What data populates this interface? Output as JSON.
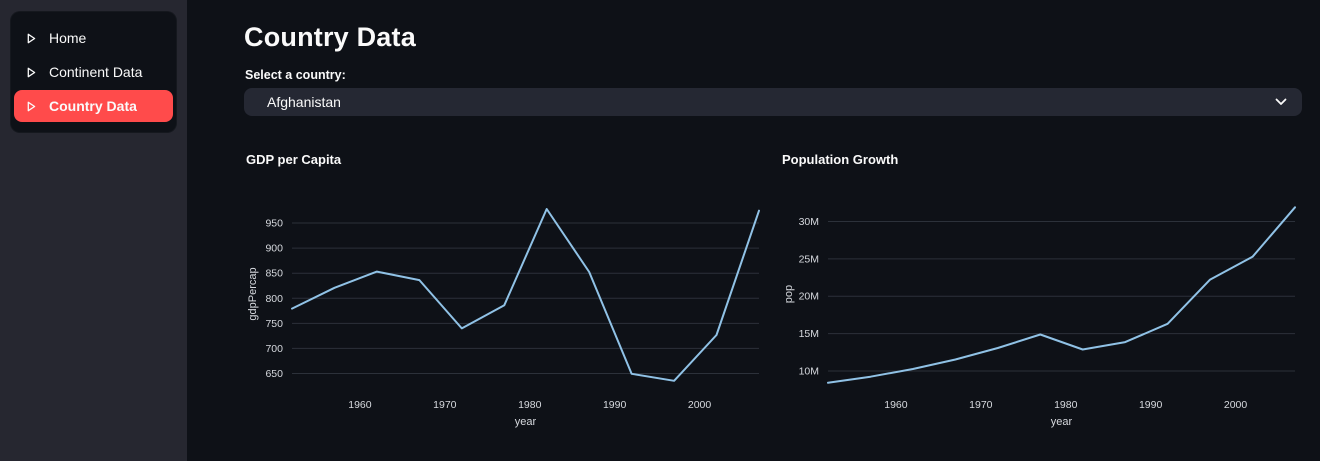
{
  "colors": {
    "primary": "#ff4b4b",
    "background": "#0e1117",
    "sidebar_background": "#262730",
    "card_background": "#0e1117",
    "input_background": "#252833",
    "text": "#fafafa",
    "muted_text": "#d6d9de",
    "grid": "#2c313a",
    "line": "#90c2e6"
  },
  "sidebar": {
    "items": [
      {
        "label": "Home",
        "icon": "caret-right-icon",
        "active": false
      },
      {
        "label": "Continent Data",
        "icon": "caret-right-icon",
        "active": false
      },
      {
        "label": "Country Data",
        "icon": "caret-right-icon",
        "active": true
      }
    ]
  },
  "main": {
    "title": "Country Data",
    "select_label": "Select a country:",
    "select": {
      "value": "Afghanistan",
      "icon": "chevron-down-icon"
    }
  },
  "chart_data": [
    {
      "type": "line",
      "title": "GDP per Capita",
      "xlabel": "year",
      "ylabel": "gdpPercap",
      "x": [
        1952,
        1957,
        1962,
        1967,
        1972,
        1977,
        1982,
        1987,
        1992,
        1997,
        2002,
        2007
      ],
      "y": [
        779.45,
        820.85,
        853.1,
        836.2,
        739.98,
        786.11,
        978.01,
        852.4,
        649.34,
        635.34,
        726.73,
        974.58
      ],
      "xlim": [
        1952,
        2007
      ],
      "ylim": [
        625,
        992
      ],
      "xticks": [
        1960,
        1970,
        1980,
        1990,
        2000
      ],
      "yticks": [
        650,
        700,
        750,
        800,
        850,
        900,
        950
      ],
      "ytick_labels": [
        "650",
        "700",
        "750",
        "800",
        "850",
        "900",
        "950"
      ],
      "grid": true,
      "legend": false,
      "line_color": "#90c2e6"
    },
    {
      "type": "line",
      "title": "Population Growth",
      "xlabel": "year",
      "ylabel": "pop",
      "x": [
        1952,
        1957,
        1962,
        1967,
        1972,
        1977,
        1982,
        1987,
        1992,
        1997,
        2002,
        2007
      ],
      "y": [
        8425333,
        9240934,
        10267083,
        11537966,
        13079460,
        14880372,
        12881816,
        13867957,
        16317921,
        22227415,
        25268405,
        31889923
      ],
      "xlim": [
        1952,
        2007
      ],
      "ylim": [
        8000000,
        32600000
      ],
      "xticks": [
        1960,
        1970,
        1980,
        1990,
        2000
      ],
      "yticks": [
        10000000,
        15000000,
        20000000,
        25000000,
        30000000
      ],
      "ytick_labels": [
        "10M",
        "15M",
        "20M",
        "25M",
        "30M"
      ],
      "grid": true,
      "legend": false,
      "line_color": "#90c2e6"
    }
  ]
}
